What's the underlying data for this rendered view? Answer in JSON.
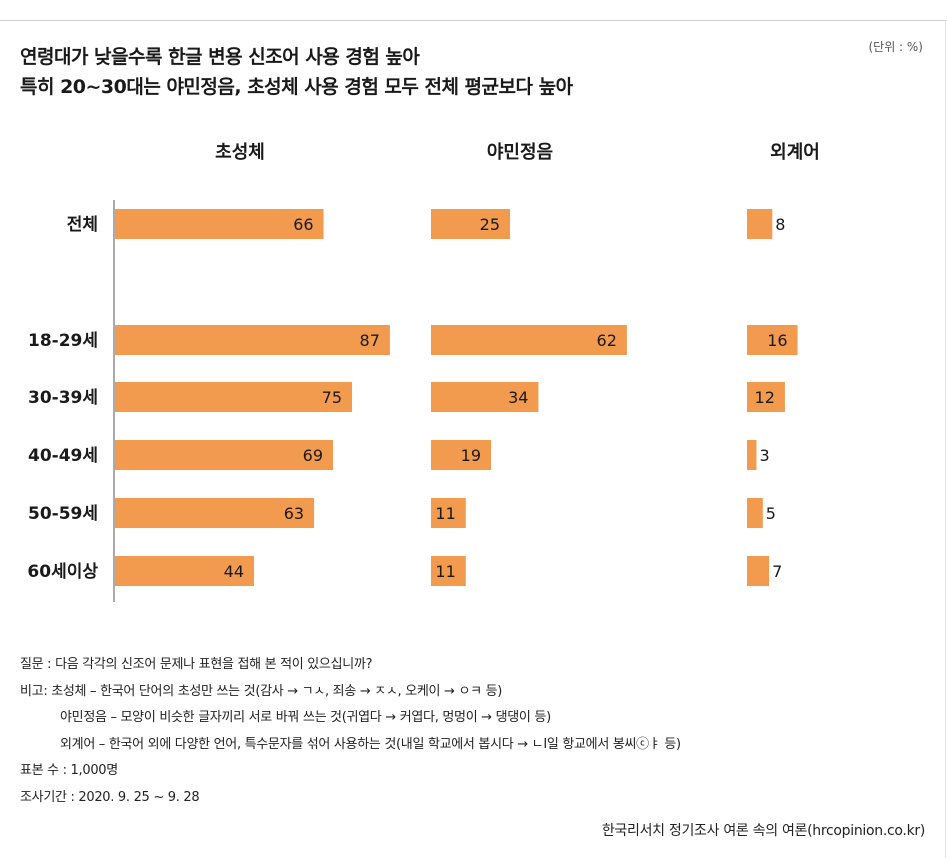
{
  "title_line1": "연령대가 낮을수록 한글 변용 신조어 사용 경험 높아",
  "title_line2": "특히 20~30대는 야민정음, 초성체 사용 경험 모두 전체 평균보다 높아",
  "unit_label": "(단위 : %)",
  "chart_data": {
    "type": "bar",
    "orientation": "horizontal",
    "categories": [
      "전체",
      "18-29세",
      "30-39세",
      "40-49세",
      "50-59세",
      "60세이상"
    ],
    "series": [
      {
        "name": "초성체",
        "values": [
          66,
          87,
          75,
          69,
          63,
          44
        ]
      },
      {
        "name": "야민정음",
        "values": [
          25,
          62,
          34,
          19,
          11,
          11
        ]
      },
      {
        "name": "외계어",
        "values": [
          8,
          16,
          12,
          3,
          5,
          7
        ]
      }
    ],
    "unit": "%",
    "bar_color": "#F29A4E"
  },
  "notes": {
    "question": "질문 : 다음 각각의 신조어 문제나 표현을 접해 본 적이 있으십니까?",
    "remark1": "비고: 초성체 – 한국어 단어의 초성만 쓰는 것(감사 → ㄱㅅ, 죄송 → ㅈㅅ, 오케이 → ㅇㅋ 등)",
    "remark2": "야민정음 – 모양이 비슷한 글자끼리 서로 바꿔 쓰는 것(귀엽다 → 커엽다, 멍멍이 → 댕댕이 등)",
    "remark3": "외계어 – 한국어 외에 다양한 언어, 특수문자를 섞어 사용하는 것(내일 학교에서 봅시다 → ㄴΙ일 항교에서 봉씨ⓒㅑ 등)",
    "sample": "표본 수 : 1,000명",
    "period": "조사기간 : 2020. 9. 25 ~ 9. 28"
  },
  "source": "한국리서치 정기조사 여론 속의 여론(hrcopinion.co.kr)"
}
